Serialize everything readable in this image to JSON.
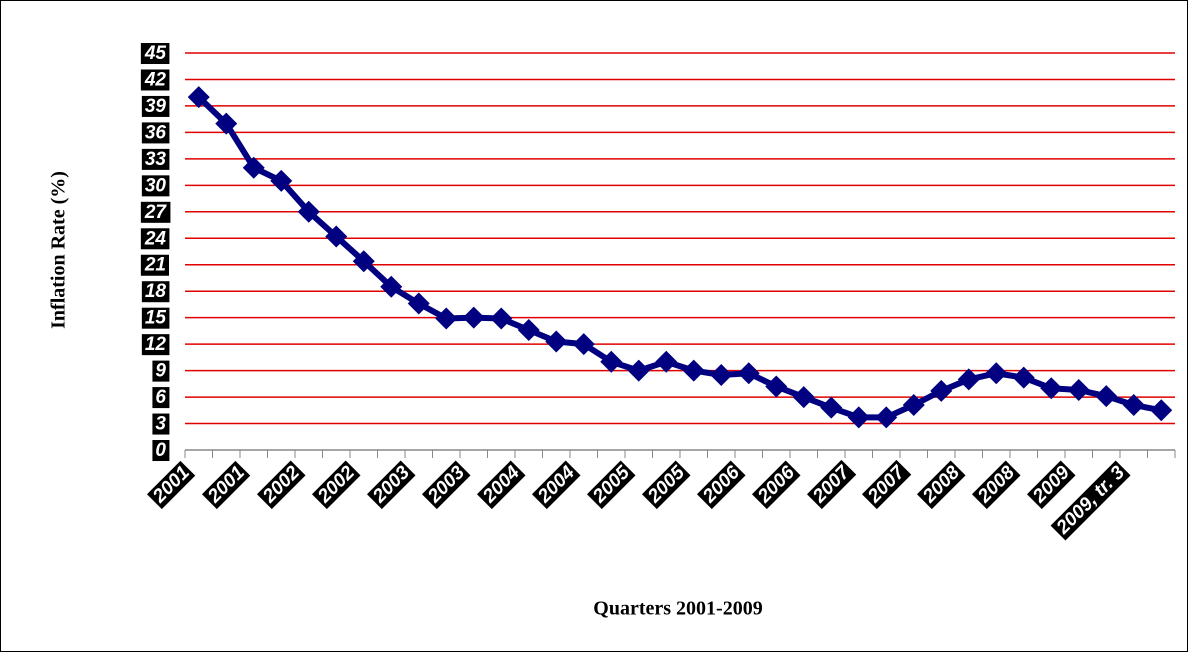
{
  "chart_data": {
    "type": "line",
    "xlabel": "Quarters 2001-2009",
    "ylabel": "Inflation Rate (%)",
    "categories": [
      "2001",
      null,
      "2001",
      null,
      "2002",
      null,
      "2002",
      null,
      "2003",
      null,
      "2003",
      null,
      "2004",
      null,
      "2004",
      null,
      "2005",
      null,
      "2005",
      null,
      "2006",
      null,
      "2006",
      null,
      "2007",
      null,
      "2007",
      null,
      "2008",
      null,
      "2008",
      null,
      "2009",
      null,
      "2009, tr. 3",
      null
    ],
    "series": [
      {
        "name": "Inflation",
        "color": "#000080",
        "values": [
          40,
          37,
          32,
          30.5,
          27,
          24.2,
          21.4,
          18.5,
          16.6,
          14.9,
          15,
          14.9,
          13.6,
          12.3,
          12,
          10,
          9,
          10,
          9,
          8.5,
          8.7,
          7.2,
          6,
          4.8,
          3.7,
          3.7,
          5.1,
          6.7,
          8,
          8.7,
          8.2,
          7,
          6.8,
          6.1,
          5.1,
          4.5
        ]
      }
    ],
    "ylim": [
      0,
      45
    ],
    "yticks": [
      0,
      3,
      6,
      9,
      12,
      15,
      18,
      21,
      24,
      27,
      30,
      33,
      36,
      39,
      42,
      45
    ],
    "grid": true,
    "grid_color": "#e00000"
  }
}
